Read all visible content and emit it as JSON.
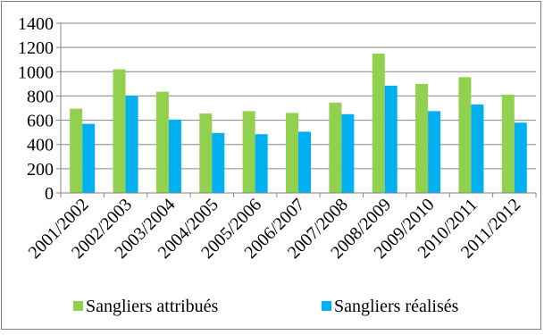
{
  "chart_data": {
    "type": "bar",
    "categories": [
      "2001/2002",
      "2002/2003",
      "2003/2004",
      "2004/2005",
      "2005/2006",
      "2006/2007",
      "2007/2008",
      "2008/2009",
      "2009/2010",
      "2010/2011",
      "2011/2012"
    ],
    "series": [
      {
        "name": "Sangliers attribués",
        "color": "#92d050",
        "values": [
          695,
          1020,
          835,
          655,
          675,
          660,
          745,
          1150,
          900,
          955,
          810
        ]
      },
      {
        "name": "Sangliers réalisés",
        "color": "#00b0f0",
        "values": [
          570,
          800,
          605,
          495,
          485,
          505,
          650,
          885,
          675,
          730,
          580
        ]
      }
    ],
    "title": "",
    "xlabel": "",
    "ylabel": "",
    "ylim": [
      0,
      1400
    ],
    "yticks": [
      "0",
      "200",
      "400",
      "600",
      "800",
      "1000",
      "1200",
      "1400"
    ],
    "grid": true,
    "gridColor": "#868686",
    "legend_position": "bottom"
  }
}
